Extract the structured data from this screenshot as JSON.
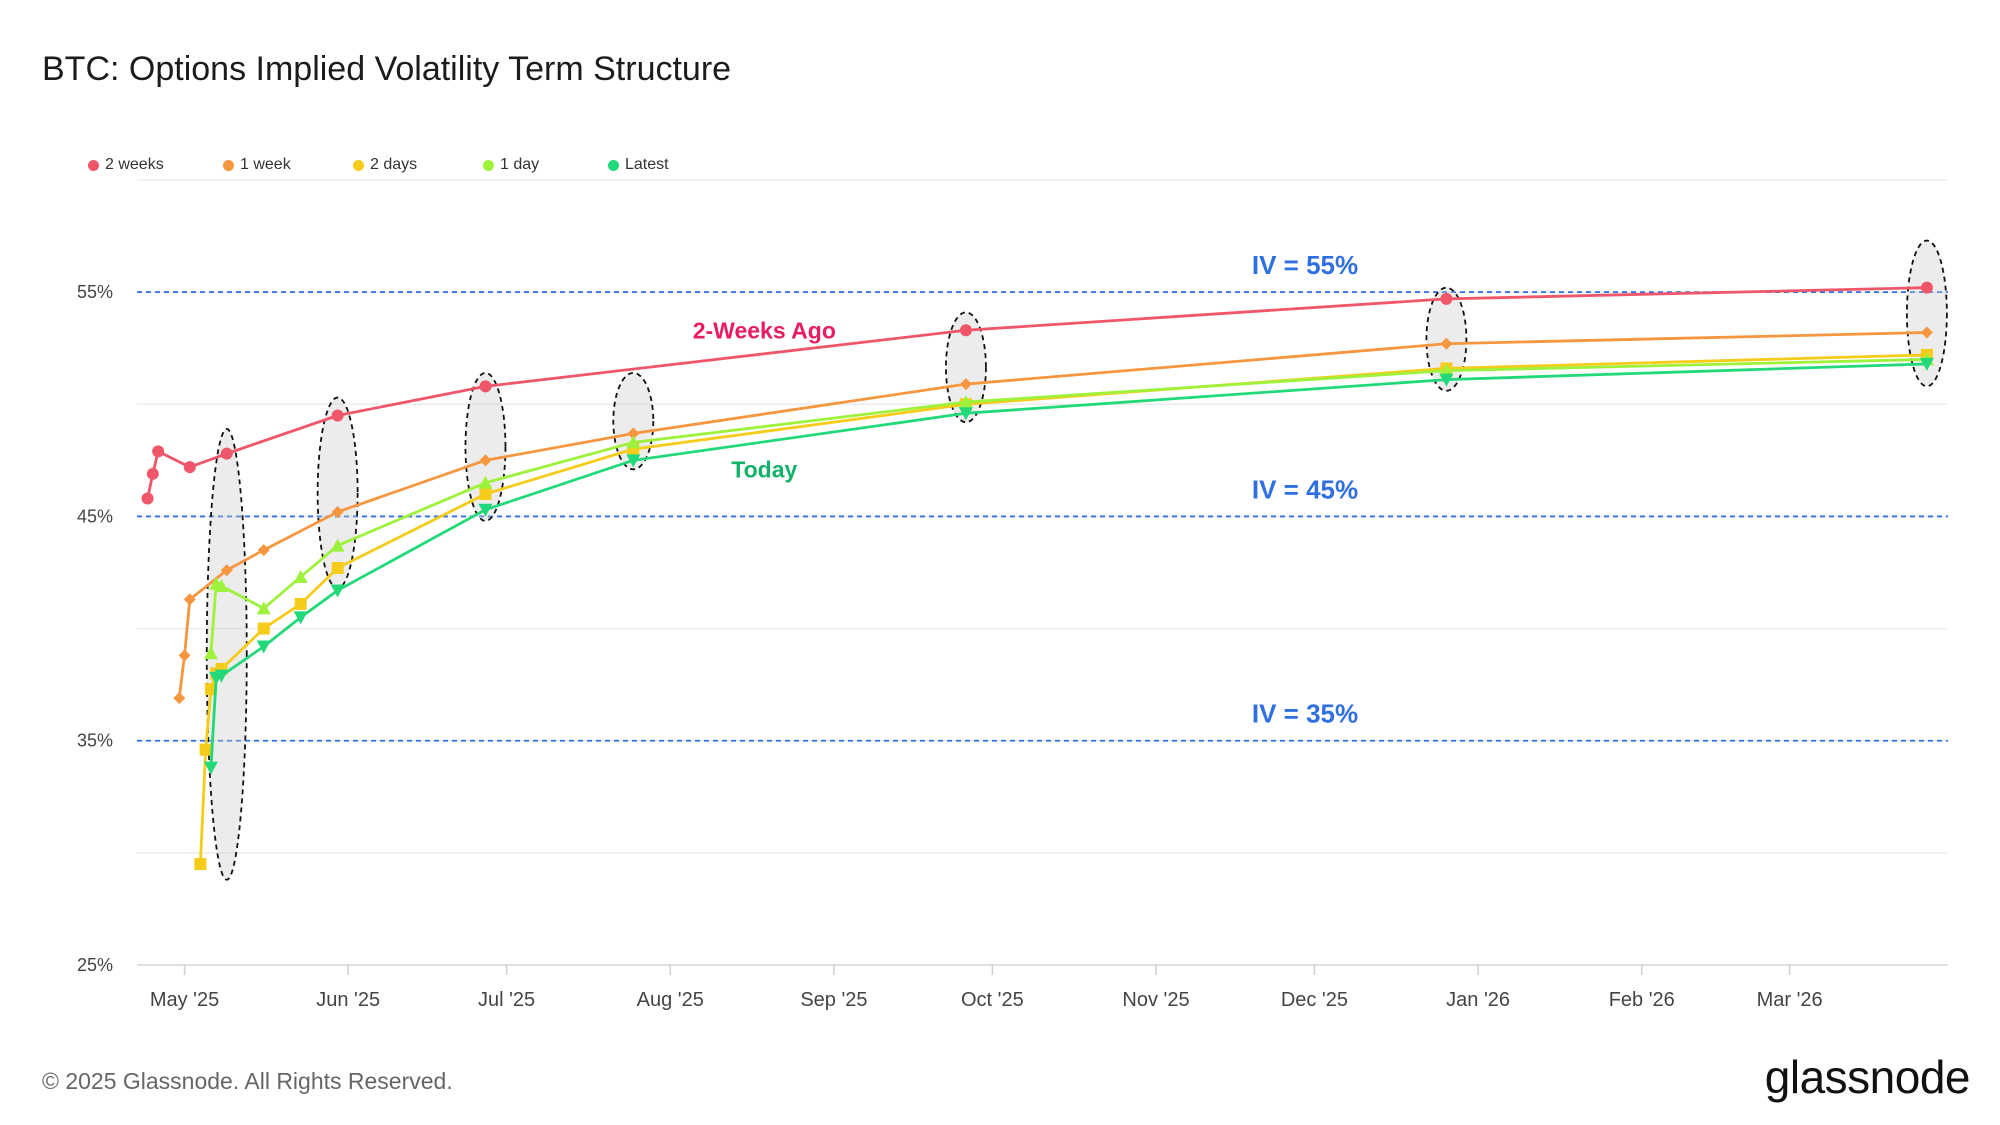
{
  "title": "BTC: Options Implied Volatility Term Structure",
  "footer": "© 2025 Glassnode. All Rights Reserved.",
  "logo_text": "glassnode",
  "chart_data": {
    "type": "line",
    "title": "BTC: Options Implied Volatility Term Structure",
    "xlabel": "",
    "ylabel": "",
    "x_tick_labels": [
      "May '25",
      "Jun '25",
      "Jul '25",
      "Aug '25",
      "Sep '25",
      "Oct '25",
      "Nov '25",
      "Dec '25",
      "Jan '26",
      "Feb '26",
      "Mar '26"
    ],
    "x_tick_dates": [
      "2025-05-01",
      "2025-06-01",
      "2025-07-01",
      "2025-08-01",
      "2025-09-01",
      "2025-10-01",
      "2025-11-01",
      "2025-12-01",
      "2026-01-01",
      "2026-02-01",
      "2026-03-01"
    ],
    "xlim": [
      "2025-04-22",
      "2026-03-31"
    ],
    "y_tick_labels": [
      "25%",
      "35%",
      "45%",
      "55%"
    ],
    "y_ticks": [
      25,
      35,
      45,
      55
    ],
    "ylim": [
      25,
      60
    ],
    "grid": true,
    "legend_position": "top-left",
    "series": [
      {
        "name": "2 weeks",
        "color": "#f0566a",
        "marker": "circle",
        "x": [
          "2025-04-24",
          "2025-04-25",
          "2025-04-26",
          "2025-05-02",
          "2025-05-09",
          "2025-05-30",
          "2025-06-27",
          "2025-09-26",
          "2025-12-26",
          "2026-03-27"
        ],
        "y": [
          45.8,
          46.9,
          47.9,
          47.2,
          47.8,
          49.5,
          50.8,
          53.3,
          54.7,
          55.2
        ]
      },
      {
        "name": "1 week",
        "color": "#f6963f",
        "marker": "diamond",
        "x": [
          "2025-04-30",
          "2025-05-01",
          "2025-05-02",
          "2025-05-09",
          "2025-05-16",
          "2025-05-30",
          "2025-06-27",
          "2025-07-25",
          "2025-09-26",
          "2025-12-26",
          "2026-03-27"
        ],
        "y": [
          36.9,
          38.8,
          41.3,
          42.6,
          43.5,
          45.2,
          47.5,
          48.7,
          50.9,
          52.7,
          53.2
        ]
      },
      {
        "name": "2 days",
        "color": "#f5cc1a",
        "marker": "square",
        "x": [
          "2025-05-04",
          "2025-05-05",
          "2025-05-06",
          "2025-05-07",
          "2025-05-08",
          "2025-05-16",
          "2025-05-23",
          "2025-05-30",
          "2025-06-27",
          "2025-07-25",
          "2025-09-26",
          "2025-12-26",
          "2026-03-27"
        ],
        "y": [
          29.5,
          34.6,
          37.3,
          38.0,
          38.2,
          40.0,
          41.1,
          42.7,
          46.0,
          48.0,
          50.0,
          51.6,
          52.2
        ]
      },
      {
        "name": "1 day",
        "color": "#9ef23c",
        "marker": "triangle-up",
        "x": [
          "2025-05-06",
          "2025-05-07",
          "2025-05-08",
          "2025-05-16",
          "2025-05-23",
          "2025-05-30",
          "2025-06-27",
          "2025-07-25",
          "2025-09-26",
          "2025-12-26",
          "2026-03-27"
        ],
        "y": [
          38.9,
          42.0,
          41.9,
          40.9,
          42.3,
          43.7,
          46.5,
          48.3,
          50.1,
          51.5,
          52.0
        ]
      },
      {
        "name": "Latest",
        "color": "#22d97a",
        "marker": "triangle-down",
        "x": [
          "2025-05-06",
          "2025-05-07",
          "2025-05-08",
          "2025-05-16",
          "2025-05-23",
          "2025-05-30",
          "2025-06-27",
          "2025-07-25",
          "2025-09-26",
          "2025-12-26",
          "2026-03-27"
        ],
        "y": [
          33.8,
          37.8,
          37.9,
          39.2,
          40.5,
          41.7,
          45.3,
          47.5,
          49.6,
          51.1,
          51.8
        ]
      }
    ],
    "reference_lines": [
      {
        "y": 55,
        "label": "IV = 55%",
        "color": "#2f6fe0"
      },
      {
        "y": 45,
        "label": "IV = 45%",
        "color": "#2f6fe0"
      },
      {
        "y": 35,
        "label": "IV = 35%",
        "color": "#2f6fe0"
      }
    ],
    "annotations": [
      {
        "text": "2-Weeks Ago",
        "color": "#ea1c60",
        "x": "2025-07-25",
        "y": 53.3
      },
      {
        "text": "Today",
        "color": "#12b26a",
        "x": "2025-07-25",
        "y": 47.1
      }
    ],
    "highlight_ellipses": [
      {
        "x": "2025-05-09",
        "y_from": 28.8,
        "y_to": 48.9
      },
      {
        "x": "2025-05-30",
        "y_from": 41.8,
        "y_to": 50.3
      },
      {
        "x": "2025-06-27",
        "y_from": 44.8,
        "y_to": 51.4
      },
      {
        "x": "2025-07-25",
        "y_from": 47.1,
        "y_to": 51.4
      },
      {
        "x": "2025-09-26",
        "y_from": 49.2,
        "y_to": 54.1
      },
      {
        "x": "2025-12-26",
        "y_from": 50.6,
        "y_to": 55.2
      },
      {
        "x": "2026-03-27",
        "y_from": 50.8,
        "y_to": 57.3
      }
    ]
  }
}
